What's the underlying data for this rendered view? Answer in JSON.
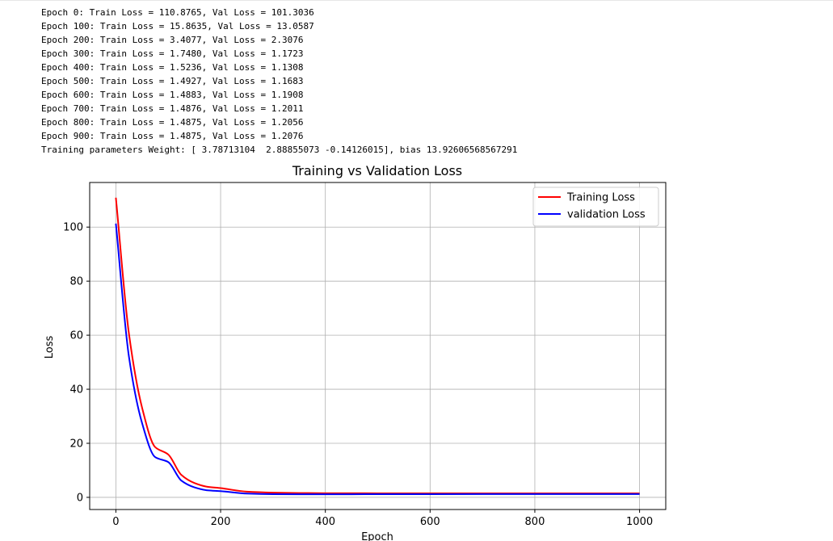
{
  "output_log": [
    "Epoch 0: Train Loss = 110.8765, Val Loss = 101.3036",
    "Epoch 100: Train Loss = 15.8635, Val Loss = 13.0587",
    "Epoch 200: Train Loss = 3.4077, Val Loss = 2.3076",
    "Epoch 300: Train Loss = 1.7480, Val Loss = 1.1723",
    "Epoch 400: Train Loss = 1.5236, Val Loss = 1.1308",
    "Epoch 500: Train Loss = 1.4927, Val Loss = 1.1683",
    "Epoch 600: Train Loss = 1.4883, Val Loss = 1.1908",
    "Epoch 700: Train Loss = 1.4876, Val Loss = 1.2011",
    "Epoch 800: Train Loss = 1.4875, Val Loss = 1.2056",
    "Epoch 900: Train Loss = 1.4875, Val Loss = 1.2076",
    "Training parameters Weight: [ 3.78713104  2.88855073 -0.14126015], bias 13.92606568567291"
  ],
  "chart_data": {
    "type": "line",
    "title": "Training vs Validation Loss",
    "xlabel": "Epoch",
    "ylabel": "Loss",
    "xlim": [
      -50,
      1050
    ],
    "ylim": [
      -4.5,
      116.5
    ],
    "xticks": [
      0,
      200,
      400,
      600,
      800,
      1000
    ],
    "yticks": [
      0,
      20,
      40,
      60,
      80,
      100
    ],
    "grid": true,
    "legend_position": "top-right",
    "series": [
      {
        "name": "Training Loss",
        "color": "#ff0000",
        "x": [
          0,
          25,
          50,
          75,
          100,
          125,
          150,
          175,
          200,
          250,
          300,
          350,
          400,
          450,
          500,
          600,
          700,
          800,
          900,
          1000
        ],
        "y": [
          110.8765,
          60.5,
          33.2,
          18.6,
          15.8635,
          8.3,
          5.3,
          3.9,
          3.4077,
          2.1,
          1.748,
          1.6,
          1.5236,
          1.5,
          1.4927,
          1.4883,
          1.4876,
          1.4875,
          1.4875,
          1.4875
        ]
      },
      {
        "name": "validation Loss",
        "color": "#0000ff",
        "x": [
          0,
          25,
          50,
          75,
          100,
          125,
          150,
          175,
          200,
          250,
          300,
          350,
          400,
          450,
          500,
          600,
          700,
          800,
          900,
          1000
        ],
        "y": [
          101.3036,
          52.0,
          27.5,
          14.9,
          13.0587,
          6.2,
          3.7,
          2.6,
          2.3076,
          1.4,
          1.1723,
          1.14,
          1.1308,
          1.15,
          1.1683,
          1.1908,
          1.2011,
          1.2056,
          1.2076,
          1.21
        ]
      }
    ]
  }
}
